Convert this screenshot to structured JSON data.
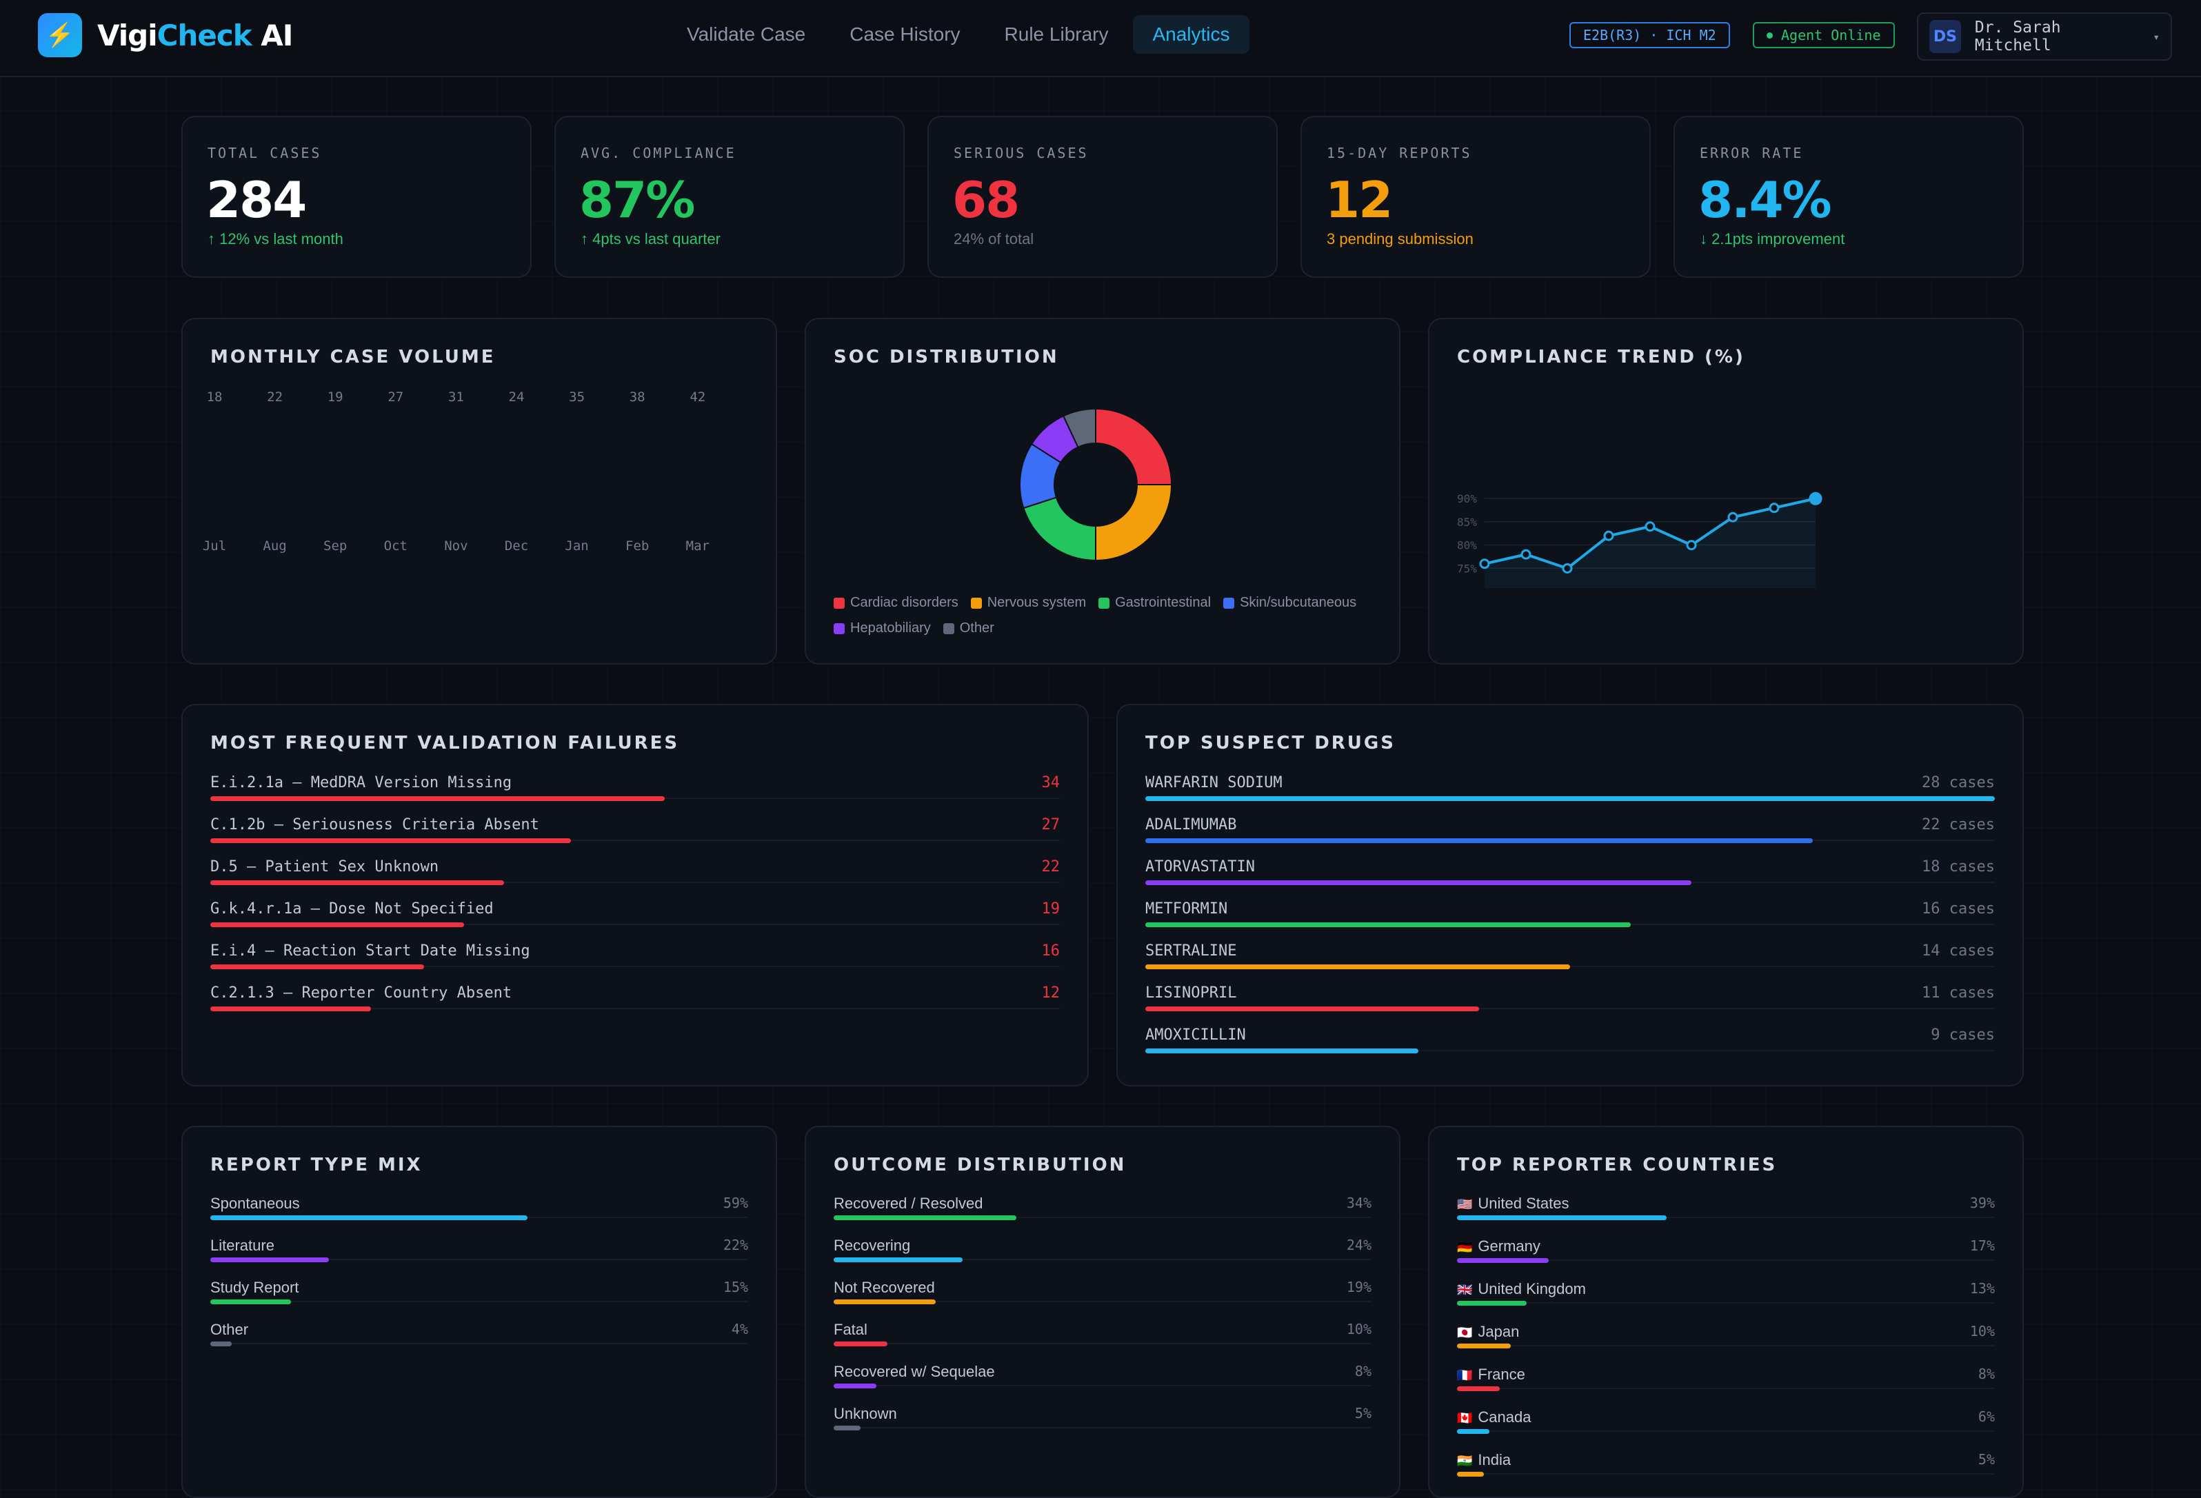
{
  "app": {
    "logo_part1": "Vigi",
    "logo_part2": "Check",
    "logo_part3": " AI",
    "logo_icon": "lightning-icon"
  },
  "nav": [
    {
      "label": "Validate Case",
      "active": false
    },
    {
      "label": "Case History",
      "active": false
    },
    {
      "label": "Rule Library",
      "active": false
    },
    {
      "label": "Analytics",
      "active": true
    }
  ],
  "header": {
    "standard_tag": "E2B(R3) · ICH M2",
    "agent_status": "Agent Online",
    "user_initials": "DS",
    "user_name": "Dr. Sarah Mitchell"
  },
  "kpis": [
    {
      "label": "TOTAL CASES",
      "value": "284",
      "sub": "↑ 12% vs last month",
      "value_color": "#ffffff",
      "sub_color": "#2fc46f"
    },
    {
      "label": "AVG. COMPLIANCE",
      "value": "87%",
      "sub": "↑ 4pts vs last quarter",
      "value_color": "#22c55e",
      "sub_color": "#2fc46f"
    },
    {
      "label": "SERIOUS CASES",
      "value": "68",
      "sub": "24% of total",
      "value_color": "#ef3340",
      "sub_color": "#6c7686"
    },
    {
      "label": "15-DAY REPORTS",
      "value": "12",
      "sub": "3 pending submission",
      "value_color": "#f59e0b",
      "sub_color": "#f59e0b"
    },
    {
      "label": "ERROR RATE",
      "value": "8.4%",
      "sub": "↓ 2.1pts improvement",
      "value_color": "#22b6f0",
      "sub_color": "#2fc46f"
    }
  ],
  "volume": {
    "title": "MONTHLY CASE VOLUME",
    "chart_data": {
      "type": "bar",
      "categories": [
        "Jul",
        "Aug",
        "Sep",
        "Oct",
        "Nov",
        "Dec",
        "Jan",
        "Feb",
        "Mar"
      ],
      "values": [
        18,
        22,
        19,
        27,
        31,
        24,
        35,
        38,
        42
      ]
    }
  },
  "soc": {
    "title": "SOC DISTRIBUTION",
    "legend": [
      {
        "name": "Cardiac disorders",
        "color": "#ef3340"
      },
      {
        "name": "Nervous system",
        "color": "#f59e0b"
      },
      {
        "name": "Gastrointestinal",
        "color": "#22c55e"
      },
      {
        "name": "Skin/subcutaneous",
        "color": "#3b6ff5"
      },
      {
        "name": "Hepatobiliary",
        "color": "#8b3cf7"
      },
      {
        "name": "Other",
        "color": "#5f6878"
      }
    ],
    "chart_data": {
      "type": "pie",
      "categories": [
        "Cardiac disorders",
        "Nervous system",
        "Gastrointestinal",
        "Skin/subcutaneous",
        "Hepatobiliary",
        "Other"
      ],
      "values": [
        25,
        25,
        20,
        14,
        9,
        7
      ]
    }
  },
  "compliance": {
    "title": "COMPLIANCE TREND (%)",
    "chart_data": {
      "type": "line",
      "y_ticks": [
        "90%",
        "85%",
        "80%",
        "75%"
      ],
      "ylim": [
        70,
        90
      ],
      "values": [
        73,
        75,
        72,
        79,
        81,
        77,
        83,
        85,
        87
      ]
    }
  },
  "failures": {
    "title": "MOST FREQUENT VALIDATION FAILURES",
    "color": "#ef3340",
    "max": 34,
    "items": [
      {
        "label": "E.i.2.1a — MedDRA Version Missing",
        "value": 34
      },
      {
        "label": "C.1.2b — Seriousness Criteria Absent",
        "value": 27
      },
      {
        "label": "D.5 — Patient Sex Unknown",
        "value": 22
      },
      {
        "label": "G.k.4.r.1a — Dose Not Specified",
        "value": 19
      },
      {
        "label": "E.i.4 — Reaction Start Date Missing",
        "value": 16
      },
      {
        "label": "C.2.1.3 — Reporter Country Absent",
        "value": 12
      }
    ]
  },
  "drugs": {
    "title": "TOP SUSPECT DRUGS",
    "max": 28,
    "unit": "cases",
    "items": [
      {
        "label": "WARFARIN SODIUM",
        "value": 28,
        "color": "#22b6f0"
      },
      {
        "label": "ADALIMUMAB",
        "value": 22,
        "color": "#2f6df0"
      },
      {
        "label": "ATORVASTATIN",
        "value": 18,
        "color": "#8b3cf7"
      },
      {
        "label": "METFORMIN",
        "value": 16,
        "color": "#22c55e"
      },
      {
        "label": "SERTRALINE",
        "value": 14,
        "color": "#f59e0b"
      },
      {
        "label": "LISINOPRIL",
        "value": 11,
        "color": "#ef3340"
      },
      {
        "label": "AMOXICILLIN",
        "value": 9,
        "color": "#22b6f0"
      }
    ]
  },
  "report_mix": {
    "title": "REPORT TYPE MIX",
    "items": [
      {
        "label": "Spontaneous",
        "value": 59,
        "color": "#22b6f0"
      },
      {
        "label": "Literature",
        "value": 22,
        "color": "#8b3cf7"
      },
      {
        "label": "Study Report",
        "value": 15,
        "color": "#22c55e"
      },
      {
        "label": "Other",
        "value": 4,
        "color": "#5f6878"
      }
    ]
  },
  "outcome": {
    "title": "OUTCOME DISTRIBUTION",
    "items": [
      {
        "label": "Recovered / Resolved",
        "value": 34,
        "color": "#22c55e"
      },
      {
        "label": "Recovering",
        "value": 24,
        "color": "#22b6f0"
      },
      {
        "label": "Not Recovered",
        "value": 19,
        "color": "#f59e0b"
      },
      {
        "label": "Fatal",
        "value": 10,
        "color": "#ef3340"
      },
      {
        "label": "Recovered w/ Sequelae",
        "value": 8,
        "color": "#8b3cf7"
      },
      {
        "label": "Unknown",
        "value": 5,
        "color": "#5f6878"
      }
    ]
  },
  "countries": {
    "title": "TOP REPORTER COUNTRIES",
    "items": [
      {
        "label": "United States",
        "flag": "🇺🇸",
        "value": 39,
        "color": "#22b6f0"
      },
      {
        "label": "Germany",
        "flag": "🇩🇪",
        "value": 17,
        "color": "#8b3cf7"
      },
      {
        "label": "United Kingdom",
        "flag": "🇬🇧",
        "value": 13,
        "color": "#22c55e"
      },
      {
        "label": "Japan",
        "flag": "🇯🇵",
        "value": 10,
        "color": "#f59e0b"
      },
      {
        "label": "France",
        "flag": "🇫🇷",
        "value": 8,
        "color": "#ef3340"
      },
      {
        "label": "Canada",
        "flag": "🇨🇦",
        "value": 6,
        "color": "#22b6f0"
      },
      {
        "label": "India",
        "flag": "🇮🇳",
        "value": 5,
        "color": "#f59e0b"
      }
    ]
  }
}
